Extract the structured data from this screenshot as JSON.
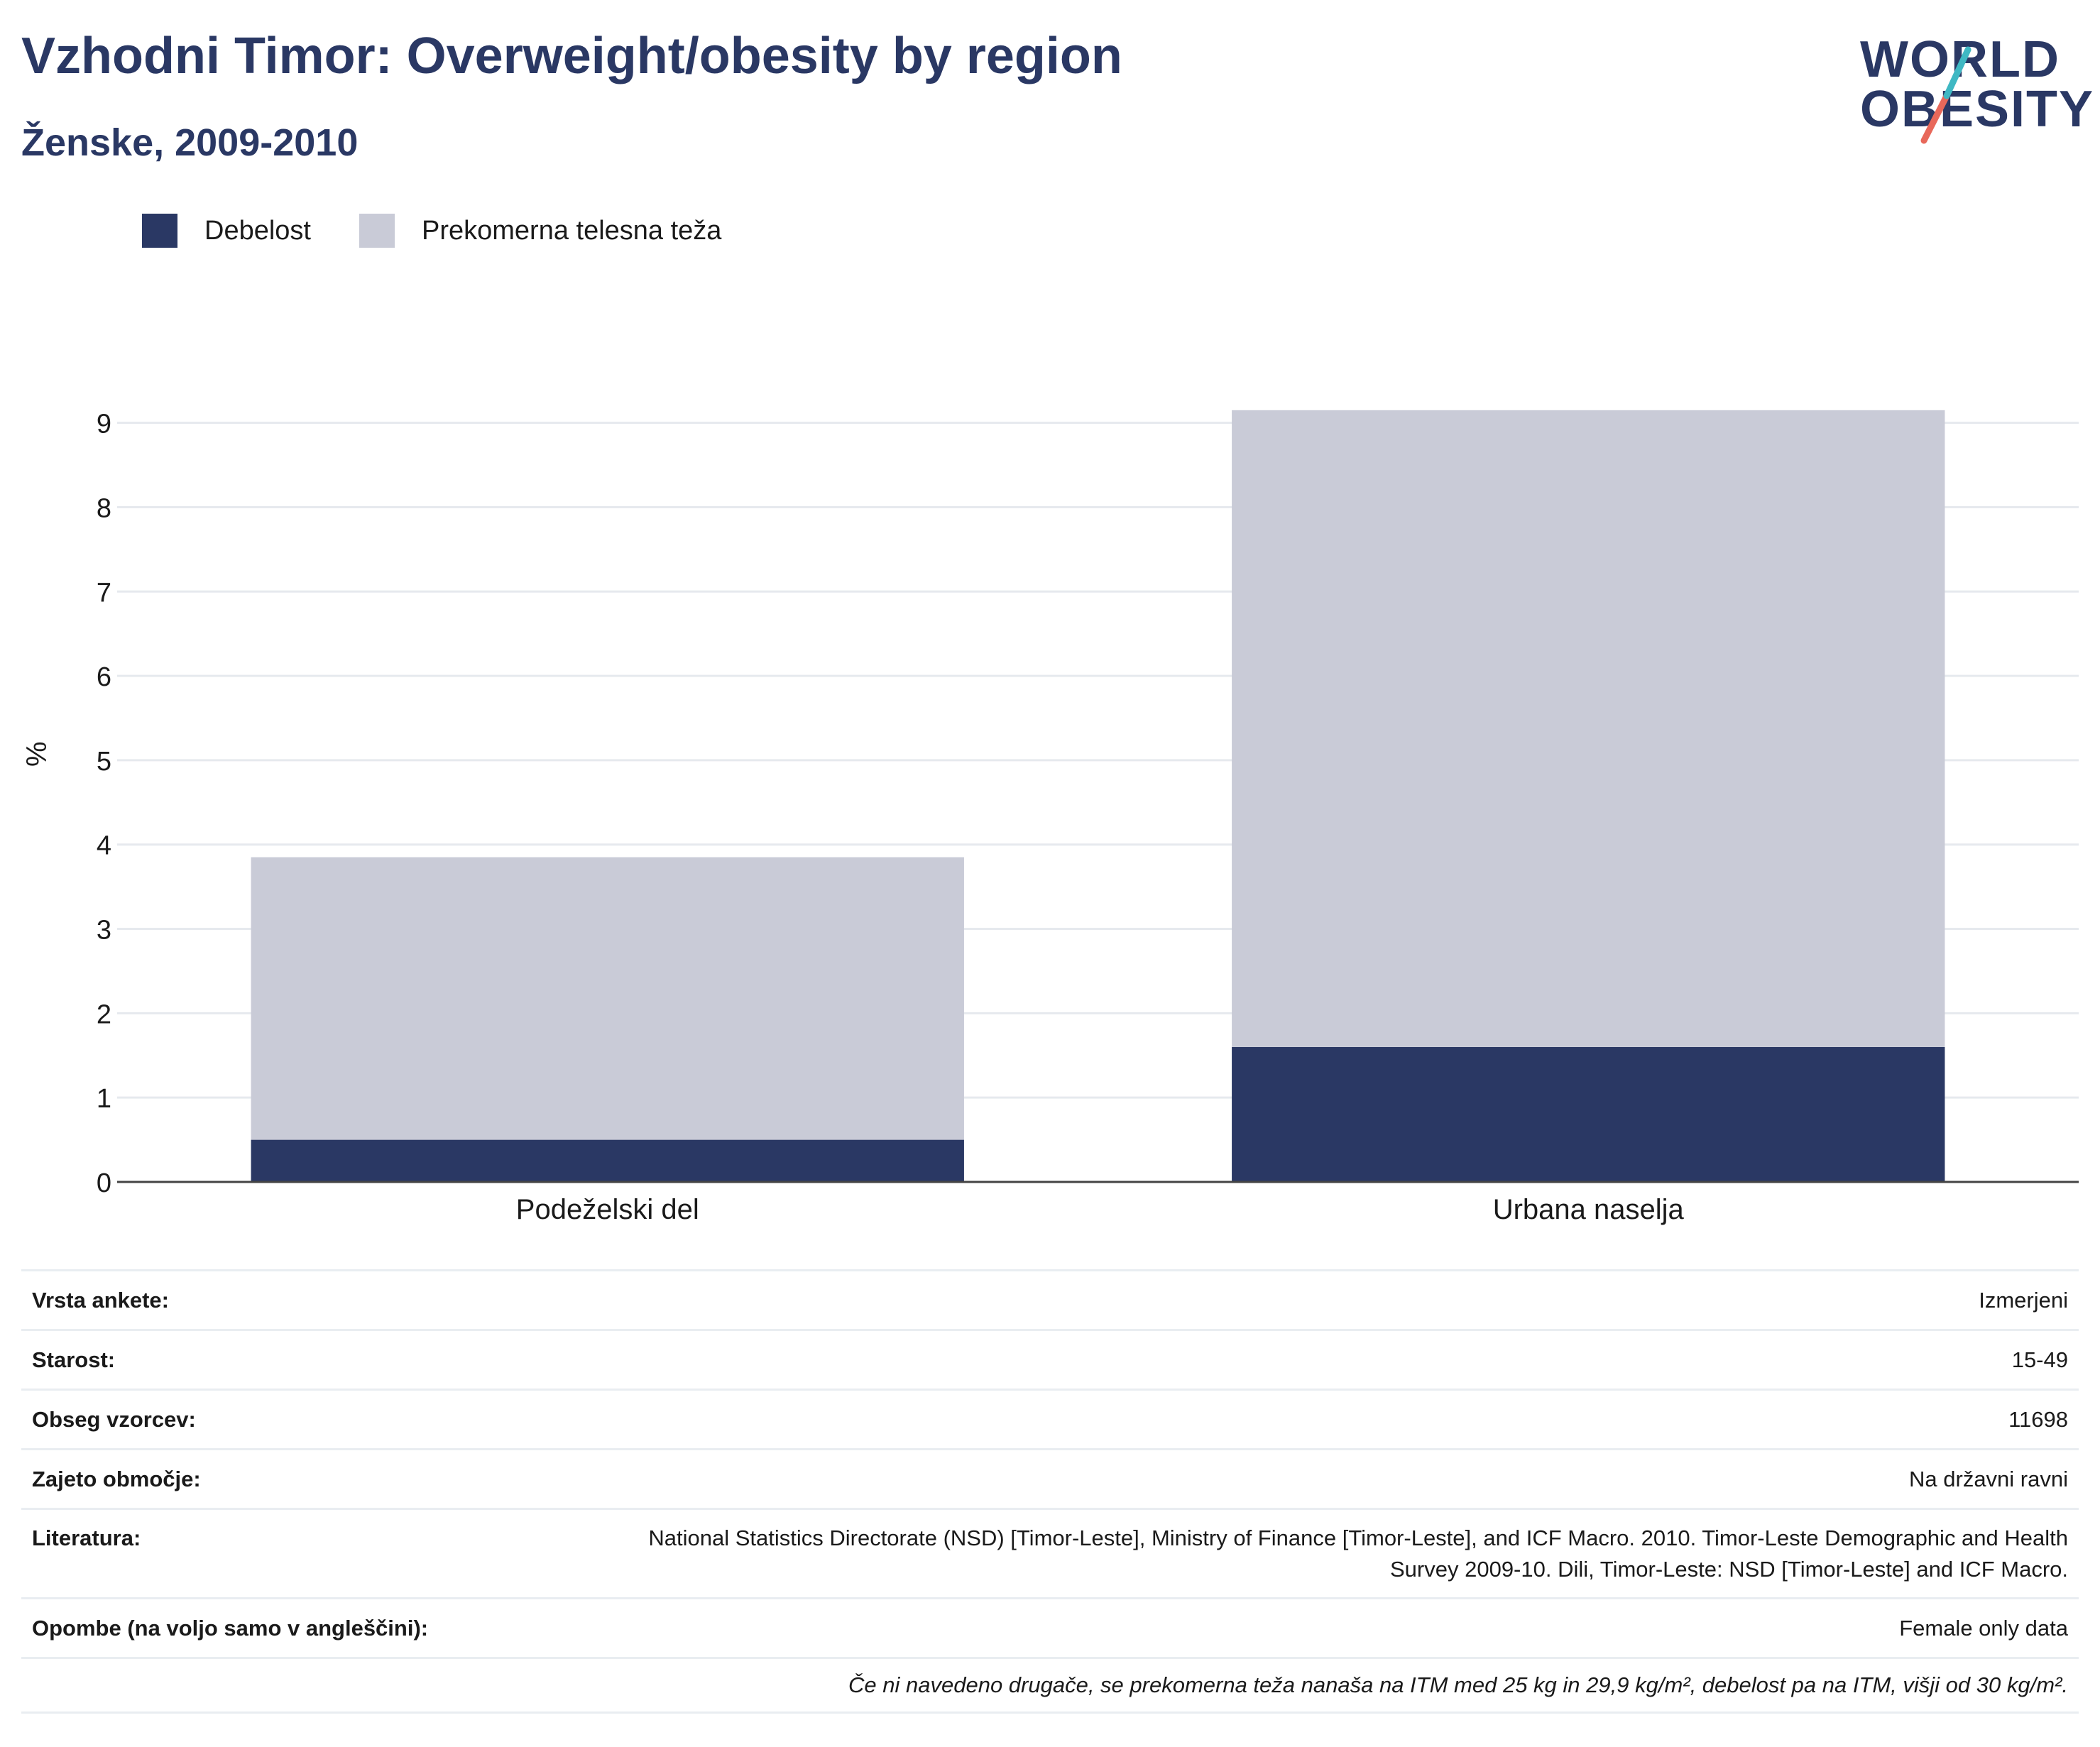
{
  "header": {
    "title": "Vzhodni Timor: Overweight/obesity by region",
    "subtitle": "Ženske, 2009-2010"
  },
  "logo": {
    "line1": "WORLD",
    "line2": "OBESITY",
    "colors": {
      "text": "#2a3864",
      "stroke_teal": "#3fb8c3",
      "stroke_red": "#e8685a"
    }
  },
  "colors": {
    "obesity": "#2a3864",
    "overweight": "#c9cbd7",
    "grid": "#e6e9ee",
    "axis": "#444444"
  },
  "chart_data": {
    "type": "bar",
    "stacked": true,
    "categories": [
      "Podeželski del",
      "Urbana naselja"
    ],
    "series": [
      {
        "name": "Debelost",
        "values": [
          0.5,
          1.6
        ]
      },
      {
        "name": "Prekomerna telesna teža",
        "values": [
          3.35,
          7.55
        ]
      }
    ],
    "ylabel": "%",
    "ylim": [
      0,
      9.3
    ],
    "yticks": [
      0,
      1,
      2,
      3,
      4,
      5,
      6,
      7,
      8,
      9
    ],
    "grid": true,
    "legend": "top-left"
  },
  "meta": {
    "rows": [
      {
        "key": "Vrsta ankete:",
        "value": "Izmerjeni"
      },
      {
        "key": "Starost:",
        "value": "15-49"
      },
      {
        "key": "Obseg vzorcev:",
        "value": "11698"
      },
      {
        "key": "Zajeto območje:",
        "value": "Na državni ravni"
      },
      {
        "key": "Literatura:",
        "value": "National Statistics Directorate (NSD) [Timor-Leste], Ministry of Finance [Timor-Leste], and ICF Macro. 2010. Timor-Leste Demographic and Health Survey 2009-10. Dili, Timor-Leste: NSD [Timor-Leste] and ICF Macro."
      },
      {
        "key": "Opombe (na voljo samo v angleščini):",
        "value": "Female only data"
      }
    ],
    "note": "Če ni navedeno drugače, se prekomerna teža nanaša na ITM med 25 kg in 29,9 kg/m², debelost pa na ITM, višji od 30 kg/m²."
  }
}
